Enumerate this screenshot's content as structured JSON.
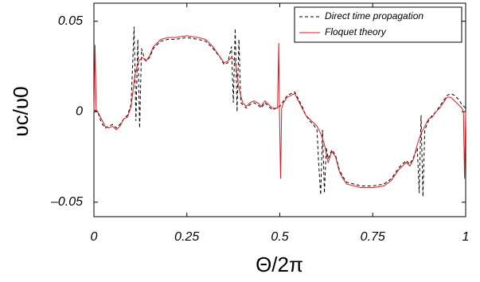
{
  "chart_data": {
    "type": "line",
    "xlabel": "Θ/2π",
    "ylabel": "υc/υ0",
    "xlim": [
      0,
      1
    ],
    "ylim": [
      -0.058,
      0.06
    ],
    "xticks": [
      0,
      0.25,
      0.5,
      0.75,
      1
    ],
    "yticks": [
      {
        "value": -0.05,
        "label": "–0.05"
      },
      0,
      0.05
    ],
    "legend": "upper right",
    "series": [
      {
        "name": "Direct time propagation",
        "color": "#000000",
        "style": "dashed",
        "x": [
          0,
          0.01,
          0.02,
          0.03,
          0.04,
          0.05,
          0.06,
          0.07,
          0.08,
          0.09,
          0.1,
          0.108,
          0.113,
          0.118,
          0.123,
          0.128,
          0.135,
          0.14,
          0.15,
          0.16,
          0.17,
          0.18,
          0.2,
          0.22,
          0.25,
          0.28,
          0.3,
          0.32,
          0.34,
          0.35,
          0.36,
          0.37,
          0.375,
          0.38,
          0.385,
          0.39,
          0.395,
          0.4,
          0.41,
          0.42,
          0.43,
          0.44,
          0.45,
          0.46,
          0.47,
          0.48,
          0.49,
          0.5,
          0.51,
          0.52,
          0.53,
          0.54,
          0.55,
          0.56,
          0.57,
          0.58,
          0.59,
          0.6,
          0.605,
          0.61,
          0.615,
          0.62,
          0.625,
          0.63,
          0.64,
          0.65,
          0.66,
          0.67,
          0.68,
          0.7,
          0.72,
          0.75,
          0.78,
          0.8,
          0.82,
          0.84,
          0.85,
          0.86,
          0.87,
          0.875,
          0.88,
          0.885,
          0.89,
          0.9,
          0.91,
          0.92,
          0.93,
          0.94,
          0.95,
          0.96,
          0.97,
          0.98,
          0.99,
          1
        ],
        "values": [
          0.001,
          0.0,
          -0.006,
          -0.009,
          -0.008,
          -0.007,
          -0.009,
          -0.007,
          -0.004,
          -0.002,
          0.004,
          0.047,
          -0.005,
          0.04,
          -0.009,
          0.035,
          0.03,
          0.028,
          0.03,
          0.035,
          0.037,
          0.039,
          0.04,
          0.04,
          0.041,
          0.04,
          0.039,
          0.035,
          0.03,
          0.026,
          0.027,
          0.036,
          0.005,
          0.046,
          0.0,
          0.04,
          0.005,
          0.004,
          0.002,
          0.004,
          0.005,
          0.004,
          0.002,
          0.005,
          0.003,
          0.001,
          0.002,
          0.003,
          0.006,
          0.009,
          0.01,
          0.011,
          0.007,
          0.003,
          -0.002,
          -0.005,
          -0.007,
          -0.01,
          -0.03,
          -0.046,
          -0.01,
          -0.045,
          -0.02,
          -0.026,
          -0.021,
          -0.024,
          -0.032,
          -0.036,
          -0.039,
          -0.04,
          -0.041,
          -0.041,
          -0.04,
          -0.037,
          -0.031,
          -0.027,
          -0.029,
          -0.025,
          -0.02,
          -0.045,
          -0.002,
          -0.047,
          -0.01,
          -0.005,
          -0.002,
          0.0,
          0.003,
          0.006,
          0.009,
          0.01,
          0.009,
          0.007,
          0.004,
          0.002
        ]
      },
      {
        "name": "Floquet theory",
        "color": "#e0191e",
        "style": "solid",
        "x": [
          0,
          0.003,
          0.006,
          0.01,
          0.02,
          0.03,
          0.04,
          0.05,
          0.06,
          0.07,
          0.08,
          0.09,
          0.1,
          0.11,
          0.12,
          0.13,
          0.14,
          0.15,
          0.16,
          0.17,
          0.18,
          0.2,
          0.22,
          0.25,
          0.28,
          0.3,
          0.32,
          0.34,
          0.35,
          0.36,
          0.37,
          0.38,
          0.39,
          0.4,
          0.41,
          0.42,
          0.43,
          0.44,
          0.45,
          0.46,
          0.47,
          0.48,
          0.49,
          0.494,
          0.497,
          0.499,
          0.502,
          0.505,
          0.51,
          0.52,
          0.53,
          0.54,
          0.55,
          0.56,
          0.57,
          0.58,
          0.59,
          0.6,
          0.61,
          0.62,
          0.63,
          0.64,
          0.65,
          0.66,
          0.67,
          0.68,
          0.7,
          0.72,
          0.75,
          0.78,
          0.8,
          0.82,
          0.84,
          0.85,
          0.86,
          0.87,
          0.88,
          0.89,
          0.9,
          0.91,
          0.92,
          0.93,
          0.94,
          0.95,
          0.96,
          0.97,
          0.98,
          0.99,
          0.994,
          0.997,
          1
        ],
        "values": [
          0.0,
          0.037,
          0.001,
          0.0,
          -0.004,
          -0.008,
          -0.009,
          -0.008,
          -0.01,
          -0.008,
          -0.004,
          -0.003,
          0.003,
          0.02,
          0.028,
          0.03,
          0.028,
          0.031,
          0.036,
          0.038,
          0.04,
          0.041,
          0.041,
          0.042,
          0.041,
          0.04,
          0.036,
          0.03,
          0.027,
          0.028,
          0.03,
          0.028,
          0.013,
          0.005,
          0.003,
          0.005,
          0.006,
          0.005,
          0.003,
          0.006,
          0.004,
          0.002,
          0.002,
          0.002,
          0.038,
          0.002,
          -0.037,
          0.002,
          0.005,
          0.008,
          0.009,
          0.01,
          0.006,
          0.002,
          -0.002,
          -0.004,
          -0.006,
          -0.008,
          -0.012,
          -0.018,
          -0.028,
          -0.022,
          -0.025,
          -0.033,
          -0.037,
          -0.04,
          -0.041,
          -0.042,
          -0.042,
          -0.041,
          -0.038,
          -0.032,
          -0.028,
          -0.03,
          -0.026,
          -0.018,
          -0.012,
          -0.008,
          -0.004,
          -0.003,
          0.0,
          0.002,
          0.005,
          0.008,
          0.008,
          0.006,
          0.004,
          0.002,
          0.0,
          -0.037,
          0.0
        ]
      }
    ]
  }
}
